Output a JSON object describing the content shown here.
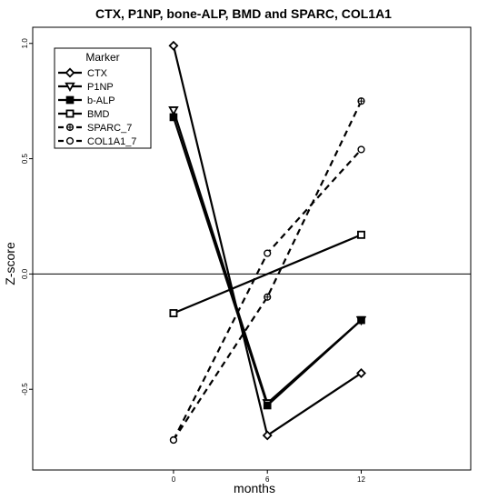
{
  "chart_data": {
    "type": "line",
    "title": "CTX, P1NP, bone-ALP, BMD and SPARC, COL1A1",
    "xlabel": "months",
    "ylabel": "Z-score",
    "x": [
      0,
      6,
      12
    ],
    "x_ticks": [
      "0",
      "6",
      "12"
    ],
    "y_ticks": [
      "-0.5",
      "0.0",
      "0.5",
      "1.0"
    ],
    "xlim": [
      -9,
      19
    ],
    "ylim": [
      -0.85,
      1.07
    ],
    "reference_line_y": 0,
    "legend": {
      "title": "Marker",
      "placement": "top-left"
    },
    "series": [
      {
        "name": "CTX",
        "values": [
          0.99,
          -0.7,
          -0.43
        ],
        "marker": "diamond",
        "dash": "solid"
      },
      {
        "name": "P1NP",
        "values": [
          0.71,
          -0.56,
          -0.2
        ],
        "marker": "triangle-down",
        "dash": "solid"
      },
      {
        "name": "b-ALP",
        "values": [
          0.68,
          -0.57,
          -0.2
        ],
        "marker": "square-filled",
        "dash": "solid"
      },
      {
        "name": "BMD",
        "values": [
          -0.17,
          null,
          0.17
        ],
        "marker": "square-open",
        "dash": "solid"
      },
      {
        "name": "SPARC_7",
        "values": [
          -0.72,
          -0.1,
          0.75
        ],
        "marker": "circle-cross",
        "dash": "dashed"
      },
      {
        "name": "COL1A1_7",
        "values": [
          -0.72,
          0.09,
          0.54
        ],
        "marker": "circle-open",
        "dash": "dashed"
      }
    ]
  }
}
